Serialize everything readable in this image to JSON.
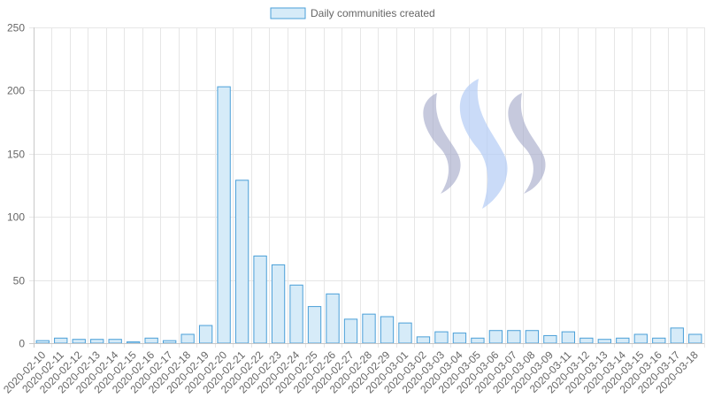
{
  "chart_data": {
    "type": "bar",
    "legend": {
      "label": "Daily communities created",
      "position": "top"
    },
    "categories": [
      "2020-02-10",
      "2020-02-11",
      "2020-02-12",
      "2020-02-13",
      "2020-02-14",
      "2020-02-15",
      "2020-02-16",
      "2020-02-17",
      "2020-02-18",
      "2020-02-19",
      "2020-02-20",
      "2020-02-21",
      "2020-02-22",
      "2020-02-23",
      "2020-02-24",
      "2020-02-25",
      "2020-02-26",
      "2020-02-27",
      "2020-02-28",
      "2020-02-29",
      "2020-03-01",
      "2020-03-02",
      "2020-03-03",
      "2020-03-04",
      "2020-03-05",
      "2020-03-06",
      "2020-03-07",
      "2020-03-08",
      "2020-03-09",
      "2020-03-11",
      "2020-03-12",
      "2020-03-13",
      "2020-03-14",
      "2020-03-15",
      "2020-03-16",
      "2020-03-17",
      "2020-03-18"
    ],
    "series": [
      {
        "name": "Daily communities created",
        "values": [
          2,
          4,
          3,
          3,
          3,
          1,
          4,
          2,
          7,
          14,
          203,
          129,
          69,
          62,
          46,
          29,
          39,
          19,
          23,
          21,
          16,
          5,
          9,
          8,
          4,
          10,
          10,
          10,
          6,
          9,
          4,
          3,
          4,
          7,
          4,
          12,
          7
        ]
      }
    ],
    "ylim": [
      0,
      250
    ],
    "yticks": [
      0,
      50,
      100,
      150,
      200,
      250
    ],
    "grid": true,
    "colors": {
      "bar_fill": "#d6ebf8",
      "bar_stroke": "#4a9fd8",
      "grid": "#e6e6e6",
      "axis": "#c8c8c8"
    }
  },
  "logo": {
    "name": "steem-logo",
    "colors": [
      "#a8accb",
      "#b3ccf5"
    ]
  }
}
